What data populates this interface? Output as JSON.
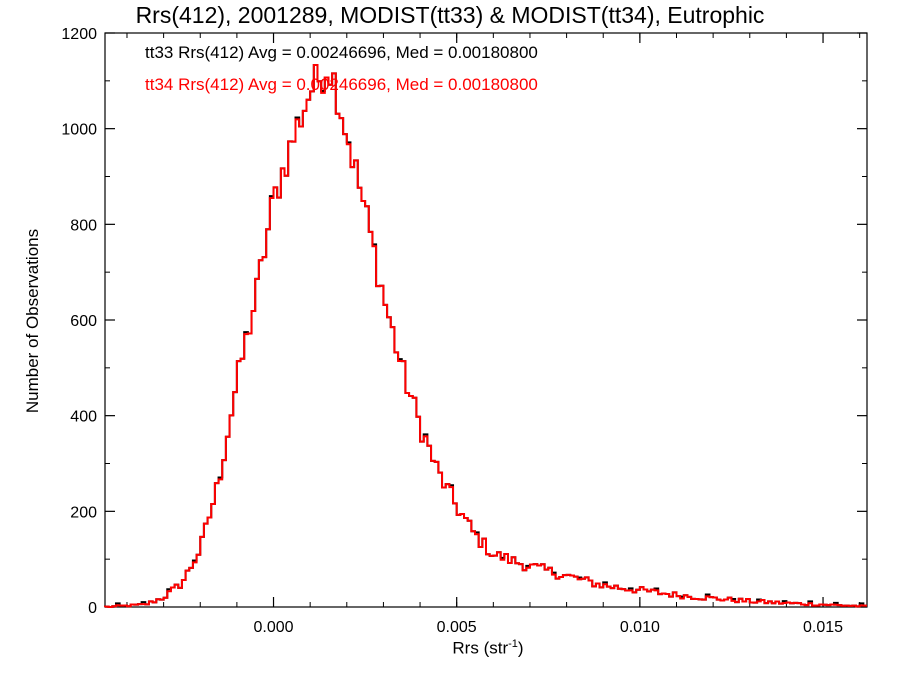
{
  "chart_data": {
    "type": "histogram",
    "title": "Rrs(412), 2001289, MODIST(tt33) & MODIST(tt34), Eutrophic",
    "xlabel": {
      "text": "Rrs (str",
      "sup": "-1",
      "close": ")"
    },
    "ylabel": "Number of Observations",
    "xlim": [
      -0.0046,
      0.0162
    ],
    "ylim": [
      0,
      1200
    ],
    "xticks": [
      0.0,
      0.005,
      0.01,
      0.015
    ],
    "xtick_labels": [
      "0.000",
      "0.005",
      "0.010",
      "0.015"
    ],
    "yticks": [
      0,
      200,
      400,
      600,
      800,
      1000,
      1200
    ],
    "ytick_labels": [
      "0",
      "200",
      "400",
      "600",
      "800",
      "1000",
      "1200"
    ],
    "grid": false,
    "legend_position": "top-left",
    "bin_width": 0.0001,
    "series": [
      {
        "name": "tt33",
        "color": "#000000",
        "label": "tt33 Rrs(412) Avg = 0.00246696, Med = 0.00180800"
      },
      {
        "name": "tt34",
        "color": "#ff0000",
        "label": "tt34 Rrs(412) Avg = 0.00246696, Med = 0.00180800"
      }
    ],
    "profile_x": [
      -0.0046,
      -0.0035,
      -0.003,
      -0.0025,
      -0.002,
      -0.0015,
      -0.001,
      -0.0005,
      0.0,
      0.0005,
      0.001,
      0.0013,
      0.0015,
      0.0017,
      0.002,
      0.0025,
      0.003,
      0.0035,
      0.004,
      0.0045,
      0.005,
      0.0055,
      0.006,
      0.007,
      0.008,
      0.009,
      0.01,
      0.011,
      0.012,
      0.013,
      0.014,
      0.015,
      0.016,
      0.0162
    ],
    "profile_y": [
      0,
      5,
      20,
      50,
      120,
      260,
      470,
      640,
      850,
      970,
      1080,
      1110,
      1135,
      1090,
      990,
      830,
      650,
      500,
      380,
      280,
      210,
      150,
      110,
      85,
      65,
      45,
      35,
      25,
      18,
      12,
      8,
      5,
      2,
      1
    ]
  }
}
